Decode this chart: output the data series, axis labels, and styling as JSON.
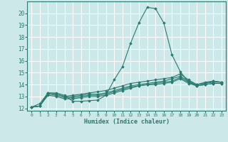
{
  "xlabel": "Humidex (Indice chaleur)",
  "xlim": [
    -0.5,
    23.5
  ],
  "ylim": [
    11.8,
    21.0
  ],
  "yticks": [
    12,
    13,
    14,
    15,
    16,
    17,
    18,
    19,
    20
  ],
  "xticks": [
    0,
    1,
    2,
    3,
    4,
    5,
    6,
    7,
    8,
    9,
    10,
    11,
    12,
    13,
    14,
    15,
    16,
    17,
    18,
    19,
    20,
    21,
    22,
    23
  ],
  "background_color": "#cce8e8",
  "grid_color": "#ffffff",
  "line_color": "#2a7a6f",
  "lines": [
    {
      "x": [
        0,
        1,
        2,
        3,
        4,
        5,
        6,
        7,
        8,
        9,
        10,
        11,
        12,
        13,
        14,
        15,
        16,
        17,
        18,
        19,
        20,
        21,
        22,
        23
      ],
      "y": [
        12.1,
        12.4,
        13.3,
        13.3,
        13.1,
        12.6,
        12.6,
        12.65,
        12.7,
        13.1,
        14.4,
        15.5,
        17.5,
        19.2,
        20.5,
        20.4,
        19.2,
        16.5,
        15.1,
        14.2,
        14.0,
        14.2,
        14.3,
        14.2
      ]
    },
    {
      "x": [
        0,
        1,
        2,
        3,
        4,
        5,
        6,
        7,
        8,
        9,
        10,
        11,
        12,
        13,
        14,
        15,
        16,
        17,
        18,
        19,
        20,
        21,
        22,
        23
      ],
      "y": [
        12.1,
        12.2,
        13.3,
        13.2,
        13.0,
        13.1,
        13.2,
        13.3,
        13.4,
        13.5,
        13.7,
        13.9,
        14.1,
        14.2,
        14.3,
        14.4,
        14.5,
        14.6,
        14.9,
        14.4,
        14.0,
        14.1,
        14.3,
        14.2
      ]
    },
    {
      "x": [
        0,
        1,
        2,
        3,
        4,
        5,
        6,
        7,
        8,
        9,
        10,
        11,
        12,
        13,
        14,
        15,
        16,
        17,
        18,
        19,
        20,
        21,
        22,
        23
      ],
      "y": [
        12.1,
        12.2,
        13.3,
        13.2,
        13.0,
        13.0,
        13.1,
        13.2,
        13.2,
        13.3,
        13.5,
        13.7,
        13.9,
        14.0,
        14.1,
        14.2,
        14.3,
        14.5,
        14.7,
        14.3,
        14.0,
        14.1,
        14.2,
        14.2
      ]
    },
    {
      "x": [
        0,
        1,
        2,
        3,
        4,
        5,
        6,
        7,
        8,
        9,
        10,
        11,
        12,
        13,
        14,
        15,
        16,
        17,
        18,
        19,
        20,
        21,
        22,
        23
      ],
      "y": [
        12.1,
        12.2,
        13.2,
        13.1,
        12.9,
        12.9,
        13.0,
        13.1,
        13.1,
        13.2,
        13.4,
        13.6,
        13.8,
        13.9,
        14.0,
        14.1,
        14.2,
        14.3,
        14.6,
        14.2,
        13.9,
        14.0,
        14.1,
        14.1
      ]
    },
    {
      "x": [
        0,
        1,
        2,
        3,
        4,
        5,
        6,
        7,
        8,
        9,
        10,
        11,
        12,
        13,
        14,
        15,
        16,
        17,
        18,
        19,
        20,
        21,
        22,
        23
      ],
      "y": [
        12.1,
        12.2,
        13.1,
        13.0,
        12.8,
        12.8,
        12.9,
        13.0,
        13.0,
        13.1,
        13.3,
        13.5,
        13.7,
        13.9,
        14.0,
        14.0,
        14.1,
        14.2,
        14.5,
        14.1,
        13.9,
        14.0,
        14.1,
        14.1
      ]
    }
  ]
}
